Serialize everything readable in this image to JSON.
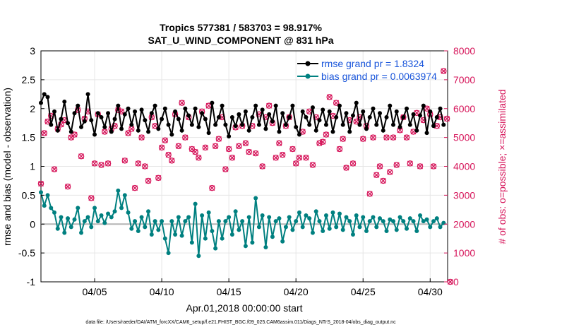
{
  "colors": {
    "rmse": "#000000",
    "bias": "#008080",
    "obs": "#d6155a",
    "zero_line": "#b4b4b4",
    "grid": "#e6e6e6",
    "legend_text": "#1a56db"
  },
  "footer_text": "data file: /Users/raeder/DAI/ATM_forcXX/CAM6_setup/f.e21.FHIST_BGC.f09_025.CAM6assim.011/Diags_NTrS_2018-04/obs_diag_output.nc",
  "chart_data": {
    "type": "line",
    "title": "Tropics 577381 / 583703 = 98.917%",
    "subtitle": "SAT_U_WIND_COMPONENT @ 831 hPa",
    "xlabel": "Apr.01,2018 00:00:00 start",
    "ylabel": "rmse and bias (model - observation)",
    "ylabel_right": "# of obs: o=possible; ×=assimilated",
    "xlim": [
      1,
      31.3
    ],
    "ylim": [
      -1,
      3
    ],
    "ylim_right": [
      0,
      8000
    ],
    "x_ticks": [
      {
        "value": 5,
        "label": "04/05"
      },
      {
        "value": 10,
        "label": "04/10"
      },
      {
        "value": 15,
        "label": "04/15"
      },
      {
        "value": 20,
        "label": "04/20"
      },
      {
        "value": 25,
        "label": "04/25"
      },
      {
        "value": 30,
        "label": "04/30"
      }
    ],
    "y_ticks": [
      "-1",
      "-0.5",
      "0",
      "0.5",
      "1",
      "1.5",
      "2",
      "2.5",
      "3"
    ],
    "y_ticks_right": [
      "0",
      "1000",
      "2000",
      "3000",
      "4000",
      "5000",
      "6000",
      "7000",
      "8000"
    ],
    "legend_position": "top-right",
    "x_start": 1.0,
    "x_step": 0.25,
    "series": [
      {
        "name": "rmse grand pr = 1.8324",
        "axis": "left",
        "marker": "dot",
        "values": [
          2.1,
          2.25,
          2.2,
          1.72,
          1.95,
          1.62,
          1.82,
          2.12,
          1.75,
          1.6,
          1.92,
          2.05,
          1.68,
          1.78,
          2.25,
          1.8,
          1.55,
          1.92,
          1.85,
          1.68,
          1.92,
          1.6,
          1.82,
          2.05,
          1.65,
          1.9,
          2.0,
          1.72,
          1.95,
          1.62,
          1.98,
          1.8,
          1.6,
          1.92,
          2.05,
          1.65,
          1.82,
          2.0,
          1.72,
          1.55,
          1.95,
          1.82,
          1.62,
          2.0,
          1.88,
          1.72,
          2.0,
          1.68,
          1.92,
          1.82,
          1.58,
          2.1,
          1.72,
          1.85,
          2.05,
          1.72,
          1.52,
          1.85,
          1.7,
          1.9,
          1.72,
          1.95,
          1.62,
          1.85,
          2.05,
          1.72,
          1.98,
          1.65,
          1.9,
          1.78,
          2.05,
          1.6,
          1.92,
          1.72,
          1.85,
          2.05,
          1.68,
          1.55,
          1.95,
          1.85,
          1.72,
          2.02,
          1.62,
          1.8,
          1.98,
          1.72,
          1.95,
          1.6,
          1.85,
          2.05,
          1.72,
          1.92,
          1.6,
          1.88,
          2.1,
          1.72,
          1.95,
          1.65,
          1.85,
          2.0,
          1.72,
          1.92,
          1.62,
          1.85,
          2.05,
          1.72,
          1.95,
          1.68,
          1.85,
          2.0,
          1.72,
          1.9,
          1.62,
          1.88,
          2.05,
          1.58,
          1.95,
          1.7,
          1.85,
          2.0,
          1.72
        ]
      },
      {
        "name": "bias grand pr = 0.0063974",
        "axis": "left",
        "marker": "dot",
        "values": [
          0.55,
          0.32,
          0.5,
          0.28,
          0.2,
          -0.08,
          0.12,
          -0.15,
          0.1,
          -0.05,
          0.08,
          0.28,
          -0.15,
          0.05,
          0.12,
          -0.05,
          0.28,
          0.05,
          0.15,
          0.02,
          0.18,
          0.12,
          0.22,
          0.58,
          0.28,
          0.5,
          0.2,
          -0.08,
          0.05,
          -0.12,
          0.12,
          -0.05,
          0.22,
          -0.18,
          0.05,
          -0.1,
          0.05,
          -0.25,
          -0.5,
          0.05,
          -0.18,
          0.12,
          -0.2,
          0.05,
          0.12,
          -0.32,
          0.35,
          -0.55,
          0.15,
          -0.25,
          0.2,
          -0.12,
          -0.42,
          0.05,
          -0.25,
          0.05,
          0.12,
          -0.18,
          0.22,
          -0.1,
          0.05,
          -0.38,
          0.12,
          -0.32,
          0.45,
          -0.05,
          0.15,
          -0.4,
          0.12,
          -0.22,
          0.05,
          0.1,
          -0.3,
          -0.05,
          0.12,
          -0.1,
          0.05,
          0.2,
          -0.05,
          0.15,
          0.1,
          -0.15,
          0.22,
          0.05,
          -0.12,
          0.15,
          -0.08,
          0.2,
          -0.05,
          0.18,
          -0.1,
          0.12,
          0.05,
          -0.18,
          0.15,
          -0.05,
          0.12,
          -0.12,
          0.05,
          0.12,
          -0.05,
          0.1,
          0.05,
          -0.12,
          0.08,
          0.05,
          -0.1,
          0.12,
          0.05,
          -0.08,
          0.1,
          0.05,
          -0.12,
          0.15,
          0.05,
          0.08,
          -0.05,
          0.05,
          0.1,
          -0.05,
          0.02
        ]
      },
      {
        "name": "# of obs possible / assimilated",
        "axis": "right",
        "marker": "circle-x",
        "values": [
          3400,
          5150,
          5550,
          5750,
          3900,
          5300,
          5450,
          5600,
          3300,
          5000,
          5100,
          5950,
          4350,
          5650,
          5900,
          2900,
          4100,
          5800,
          4050,
          5200,
          4100,
          5300,
          5400,
          5950,
          5900,
          4200,
          5150,
          5300,
          3250,
          4100,
          5000,
          4000,
          3500,
          5700,
          5400,
          3600,
          4650,
          4900,
          4400,
          4200,
          5800,
          4700,
          6200,
          5000,
          5700,
          4600,
          4500,
          4300,
          5900,
          4650,
          6100,
          3250,
          4700,
          4950,
          5700,
          3900,
          4600,
          4300,
          5350,
          4700,
          5400,
          4800,
          4500,
          5400,
          4450,
          5800,
          4000,
          5700,
          6100,
          5500,
          4300,
          4800,
          4400,
          5400,
          5700,
          4600,
          4100,
          4300,
          5200,
          4300,
          5900,
          4050,
          5700,
          4800,
          4850,
          5100,
          6400,
          5750,
          6200,
          4600,
          4950,
          3950,
          5600,
          4100,
          5550,
          5700,
          4950,
          5400,
          3050,
          5000,
          3700,
          4000,
          3500,
          5000,
          3800,
          5000,
          4050,
          5250,
          5700,
          5000,
          4100,
          5200,
          5850,
          4000,
          5600,
          6000,
          5800,
          4000,
          5400,
          5700,
          7300,
          5650,
          0
        ]
      }
    ]
  }
}
